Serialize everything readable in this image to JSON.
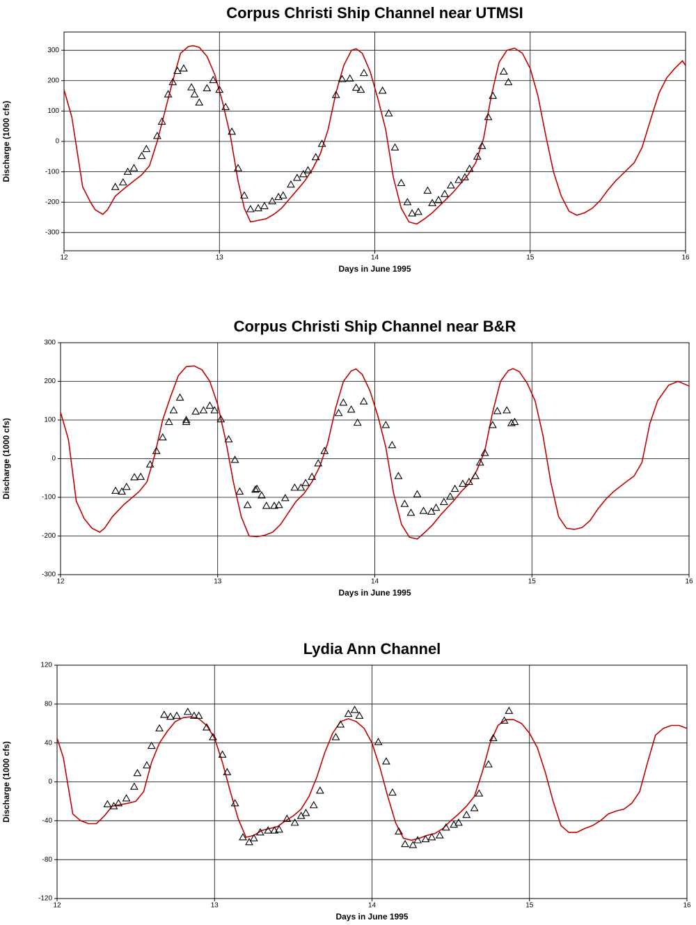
{
  "chart_data": [
    {
      "type": "line",
      "title": "Corpus Christi Ship Channel near UTMSI",
      "xlabel": "Days in June 1995",
      "ylabel": "Discharge (1000 cfs)",
      "xlim": [
        12,
        16
      ],
      "xticks": [
        12,
        13,
        14,
        15,
        16
      ],
      "ylim": [
        -360,
        360
      ],
      "yticks": [
        -300,
        -200,
        -100,
        0,
        100,
        200,
        300
      ],
      "grid": true,
      "series": [
        {
          "type": "line",
          "color": "#c00000",
          "x": [
            12.0,
            12.05,
            12.12,
            12.17,
            12.2,
            12.25,
            12.28,
            12.33,
            12.4,
            12.5,
            12.55,
            12.6,
            12.65,
            12.7,
            12.75,
            12.8,
            12.83,
            12.87,
            12.92,
            12.97,
            13.02,
            13.07,
            13.12,
            13.16,
            13.2,
            13.25,
            13.3,
            13.35,
            13.4,
            13.45,
            13.5,
            13.55,
            13.6,
            13.65,
            13.7,
            13.75,
            13.8,
            13.85,
            13.88,
            13.92,
            13.97,
            14.02,
            14.07,
            14.12,
            14.17,
            14.22,
            14.27,
            14.32,
            14.37,
            14.42,
            14.5,
            14.55,
            14.6,
            14.65,
            14.7,
            14.75,
            14.8,
            14.85,
            14.9,
            14.95,
            15.0,
            15.05,
            15.1,
            15.15,
            15.2,
            15.25,
            15.3,
            15.35,
            15.4,
            15.45,
            15.5,
            15.55,
            15.6,
            15.67,
            15.72,
            15.78,
            15.83,
            15.88,
            15.93,
            15.98,
            16.0
          ],
          "values": [
            170,
            80,
            -150,
            -200,
            -225,
            -240,
            -225,
            -180,
            -150,
            -110,
            -80,
            0,
            100,
            200,
            290,
            312,
            315,
            310,
            280,
            220,
            130,
            20,
            -130,
            -220,
            -265,
            -260,
            -255,
            -240,
            -220,
            -190,
            -160,
            -130,
            -90,
            -40,
            40,
            160,
            250,
            300,
            305,
            290,
            230,
            140,
            40,
            -120,
            -220,
            -265,
            -272,
            -255,
            -235,
            -210,
            -170,
            -140,
            -110,
            -70,
            10,
            150,
            260,
            300,
            307,
            290,
            240,
            150,
            20,
            -100,
            -180,
            -230,
            -243,
            -235,
            -220,
            -195,
            -160,
            -130,
            -105,
            -70,
            -20,
            80,
            160,
            210,
            240,
            265,
            250
          ]
        },
        {
          "type": "scatter",
          "color": "#000000",
          "x": [
            12.33,
            12.38,
            12.41,
            12.45,
            12.5,
            12.53,
            12.6,
            12.63,
            12.67,
            12.7,
            12.73,
            12.77,
            12.82,
            12.84,
            12.87,
            12.92,
            12.96,
            13.0,
            13.04,
            13.08,
            13.12,
            13.16,
            13.2,
            13.25,
            13.29,
            13.34,
            13.38,
            13.41,
            13.46,
            13.5,
            13.54,
            13.57,
            13.62,
            13.66,
            13.75,
            13.79,
            13.84,
            13.88,
            13.91,
            13.93,
            14.05,
            14.09,
            14.13,
            14.17,
            14.21,
            14.24,
            14.28,
            14.34,
            14.37,
            14.41,
            14.45,
            14.49,
            14.54,
            14.58,
            14.61,
            14.66,
            14.69,
            14.73,
            14.76,
            14.83,
            14.86
          ],
          "values": [
            -150,
            -135,
            -100,
            -88,
            -48,
            -25,
            18,
            65,
            155,
            195,
            232,
            240,
            178,
            155,
            128,
            175,
            202,
            170,
            113,
            32,
            -88,
            -178,
            -223,
            -220,
            -213,
            -197,
            -183,
            -178,
            -142,
            -120,
            -108,
            -95,
            -52,
            -8,
            153,
            205,
            207,
            177,
            170,
            225,
            167,
            92,
            -20,
            -137,
            -200,
            -237,
            -232,
            -162,
            -203,
            -193,
            -173,
            -145,
            -127,
            -118,
            -90,
            -50,
            -15,
            80,
            150,
            230,
            195
          ]
        }
      ]
    },
    {
      "type": "line",
      "title": "Corpus Christi Ship Channel near B&R",
      "xlabel": "Days in June 1995",
      "ylabel": "Discharge (1000 cfs)",
      "xlim": [
        12,
        16
      ],
      "xticks": [
        12,
        13,
        14,
        15,
        16
      ],
      "ylim": [
        -300,
        300
      ],
      "yticks": [
        -300,
        -200,
        -100,
        0,
        100,
        200,
        300
      ],
      "grid": true,
      "series": [
        {
          "type": "line",
          "color": "#c00000",
          "x": [
            12.0,
            12.05,
            12.1,
            12.15,
            12.2,
            12.25,
            12.28,
            12.33,
            12.4,
            12.5,
            12.55,
            12.6,
            12.65,
            12.7,
            12.75,
            12.8,
            12.85,
            12.9,
            12.95,
            13.0,
            13.05,
            13.1,
            13.15,
            13.2,
            13.25,
            13.3,
            13.35,
            13.4,
            13.45,
            13.5,
            13.55,
            13.6,
            13.65,
            13.7,
            13.75,
            13.8,
            13.85,
            13.88,
            13.92,
            13.97,
            14.02,
            14.07,
            14.12,
            14.17,
            14.22,
            14.27,
            14.32,
            14.37,
            14.42,
            14.5,
            14.55,
            14.6,
            14.65,
            14.7,
            14.75,
            14.8,
            14.85,
            14.88,
            14.92,
            14.97,
            15.02,
            15.07,
            15.12,
            15.17,
            15.22,
            15.27,
            15.32,
            15.37,
            15.42,
            15.47,
            15.52,
            15.6,
            15.65,
            15.7,
            15.75,
            15.8,
            15.87,
            15.93,
            16.0
          ],
          "values": [
            120,
            50,
            -110,
            -155,
            -180,
            -190,
            -180,
            -150,
            -120,
            -85,
            -60,
            10,
            100,
            160,
            215,
            238,
            240,
            230,
            200,
            140,
            50,
            -60,
            -150,
            -200,
            -202,
            -198,
            -190,
            -170,
            -140,
            -110,
            -90,
            -60,
            -20,
            40,
            130,
            200,
            227,
            232,
            218,
            175,
            110,
            30,
            -90,
            -170,
            -203,
            -208,
            -190,
            -170,
            -145,
            -110,
            -85,
            -65,
            -30,
            20,
            120,
            200,
            228,
            233,
            225,
            195,
            150,
            60,
            -60,
            -150,
            -180,
            -183,
            -178,
            -160,
            -130,
            -105,
            -85,
            -60,
            -45,
            -10,
            90,
            150,
            190,
            200,
            188
          ]
        },
        {
          "type": "scatter",
          "color": "#000000",
          "x": [
            12.35,
            12.39,
            12.42,
            12.47,
            12.51,
            12.57,
            12.61,
            12.65,
            12.69,
            12.72,
            12.76,
            12.8,
            12.8,
            12.86,
            12.91,
            12.95,
            12.98,
            13.02,
            13.07,
            13.11,
            13.14,
            13.19,
            13.24,
            13.25,
            13.28,
            13.31,
            13.36,
            13.39,
            13.43,
            13.49,
            13.53,
            13.56,
            13.6,
            13.64,
            13.68,
            13.77,
            13.8,
            13.85,
            13.89,
            13.93,
            14.07,
            14.11,
            14.15,
            14.19,
            14.23,
            14.27,
            14.31,
            14.36,
            14.39,
            14.44,
            14.48,
            14.51,
            14.56,
            14.6,
            14.64,
            14.67,
            14.7,
            14.75,
            14.78,
            14.84,
            14.87,
            14.89
          ],
          "values": [
            -83,
            -85,
            -73,
            -48,
            -47,
            -15,
            20,
            55,
            95,
            125,
            158,
            100,
            95,
            122,
            125,
            137,
            125,
            102,
            50,
            -3,
            -85,
            -120,
            -80,
            -78,
            -95,
            -122,
            -122,
            -120,
            -102,
            -75,
            -75,
            -63,
            -47,
            -12,
            20,
            118,
            145,
            127,
            93,
            148,
            87,
            35,
            -45,
            -117,
            -140,
            -92,
            -135,
            -137,
            -127,
            -112,
            -98,
            -78,
            -65,
            -60,
            -45,
            -10,
            15,
            87,
            123,
            125,
            92,
            95
          ]
        }
      ]
    },
    {
      "type": "line",
      "title": "Lydia Ann Channel",
      "xlabel": "Days in June 1995",
      "ylabel": "Discharge (1000 cfs)",
      "xlim": [
        12,
        16
      ],
      "xticks": [
        12,
        13,
        14,
        15,
        16
      ],
      "ylim": [
        -120,
        120
      ],
      "yticks": [
        -120,
        -80,
        -40,
        0,
        40,
        80,
        120
      ],
      "grid": true,
      "series": [
        {
          "type": "line",
          "color": "#c00000",
          "x": [
            12.0,
            12.04,
            12.1,
            12.15,
            12.2,
            12.25,
            12.3,
            12.35,
            12.45,
            12.5,
            12.55,
            12.6,
            12.65,
            12.7,
            12.75,
            12.8,
            12.85,
            12.9,
            12.95,
            13.0,
            13.05,
            13.1,
            13.15,
            13.2,
            13.25,
            13.3,
            13.35,
            13.4,
            13.45,
            13.5,
            13.55,
            13.6,
            13.65,
            13.7,
            13.75,
            13.8,
            13.85,
            13.9,
            13.95,
            14.0,
            14.05,
            14.1,
            14.15,
            14.2,
            14.25,
            14.3,
            14.35,
            14.4,
            14.45,
            14.5,
            14.55,
            14.6,
            14.65,
            14.7,
            14.75,
            14.8,
            14.85,
            14.9,
            14.95,
            15.0,
            15.05,
            15.1,
            15.15,
            15.2,
            15.25,
            15.3,
            15.35,
            15.4,
            15.45,
            15.5,
            15.55,
            15.6,
            15.65,
            15.7,
            15.75,
            15.8,
            15.85,
            15.9,
            15.95,
            16.0
          ],
          "values": [
            45,
            25,
            -33,
            -40,
            -43,
            -43,
            -35,
            -25,
            -22,
            -20,
            -10,
            20,
            40,
            52,
            62,
            66,
            67,
            65,
            58,
            45,
            20,
            -10,
            -38,
            -57,
            -55,
            -50,
            -48,
            -46,
            -40,
            -35,
            -28,
            -15,
            5,
            30,
            50,
            62,
            65,
            62,
            55,
            40,
            15,
            -15,
            -42,
            -58,
            -60,
            -58,
            -55,
            -53,
            -48,
            -40,
            -33,
            -25,
            -15,
            10,
            40,
            58,
            64,
            64,
            60,
            50,
            35,
            10,
            -20,
            -45,
            -52,
            -52,
            -48,
            -45,
            -40,
            -33,
            -30,
            -28,
            -22,
            -10,
            20,
            48,
            55,
            58,
            58,
            55
          ]
        },
        {
          "type": "scatter",
          "color": "#000000",
          "x": [
            12.32,
            12.36,
            12.39,
            12.44,
            12.49,
            12.51,
            12.57,
            12.6,
            12.65,
            12.68,
            12.72,
            12.76,
            12.83,
            12.87,
            12.9,
            12.95,
            12.99,
            13.05,
            13.08,
            13.13,
            13.18,
            13.22,
            13.25,
            13.29,
            13.34,
            13.38,
            13.41,
            13.46,
            13.51,
            13.55,
            13.58,
            13.63,
            13.67,
            13.77,
            13.8,
            13.85,
            13.89,
            13.92,
            14.04,
            14.09,
            14.13,
            14.17,
            14.21,
            14.26,
            14.29,
            14.34,
            14.38,
            14.43,
            14.47,
            14.52,
            14.55,
            14.6,
            14.65,
            14.68,
            14.74,
            14.77,
            14.84,
            14.87
          ],
          "values": [
            -23,
            -25,
            -22,
            -17,
            -5,
            9,
            17,
            37,
            55,
            69,
            67,
            68,
            72,
            68,
            68,
            56,
            46,
            28,
            10,
            -22,
            -57,
            -62,
            -58,
            -52,
            -50,
            -50,
            -49,
            -38,
            -42,
            -35,
            -32,
            -24,
            -9,
            46,
            59,
            70,
            74,
            68,
            41,
            21,
            -11,
            -51,
            -64,
            -65,
            -60,
            -59,
            -57,
            -55,
            -47,
            -44,
            -42,
            -34,
            -27,
            -12,
            18,
            45,
            63,
            73
          ]
        }
      ]
    }
  ]
}
